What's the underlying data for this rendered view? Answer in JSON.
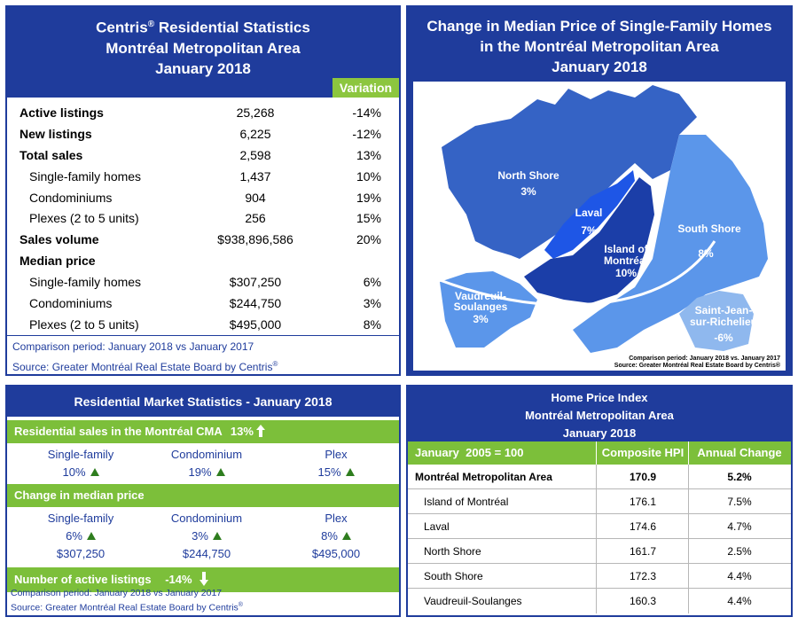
{
  "stats": {
    "title_line1": "Centris",
    "title_sup": "®",
    "title_line1_rest": " Residential Statistics",
    "title_line2": "Montréal Metropolitan Area",
    "title_line3": "January 2018",
    "variation_label": "Variation",
    "rows": [
      {
        "label": "Active listings",
        "value": "25,268",
        "variation": "-14%"
      },
      {
        "label": "New listings",
        "value": "6,225",
        "variation": "-12%"
      },
      {
        "label": "Total sales",
        "value": "2,598",
        "variation": "13%"
      },
      {
        "label": "Single-family homes",
        "value": "1,437",
        "variation": "10%"
      },
      {
        "label": "Condominiums",
        "value": "904",
        "variation": "19%"
      },
      {
        "label": "Plexes (2 to 5 units)",
        "value": "256",
        "variation": "15%"
      },
      {
        "label": "Sales volume",
        "value": "$938,896,586",
        "variation": "20%"
      },
      {
        "label": "Median price",
        "value": "",
        "variation": ""
      },
      {
        "label": "Single-family homes",
        "value": "$307,250",
        "variation": "6%"
      },
      {
        "label": "Condominiums",
        "value": "$244,750",
        "variation": "3%"
      },
      {
        "label": "Plexes (2 to 5 units)",
        "value": "$495,000",
        "variation": "8%"
      }
    ],
    "comparison": "Comparison period: January 2018 vs January 2017",
    "source": "Source: Greater Montréal Real Estate Board by Centris",
    "source_sup": "®"
  },
  "map": {
    "title_line1": "Change in Median Price of Single-Family Homes",
    "title_line2": "in the Montréal Metropolitan Area",
    "title_line3": "January 2018",
    "regions": {
      "north_shore": {
        "name": "North Shore",
        "pct": "3%"
      },
      "laval": {
        "name": "Laval",
        "pct": "7%"
      },
      "island_l1": "Island of",
      "island_l2": "Montréal",
      "island_pct": "10%",
      "south_shore": {
        "name": "South Shore",
        "pct": "8%"
      },
      "vaudreuil_l1": "Vaudreuil-",
      "vaudreuil_l2": "Soulanges",
      "vaudreuil_pct": "3%",
      "stjean_l1": "Saint-Jean-",
      "stjean_l2": "sur-Richelieu",
      "stjean_pct": "-6%"
    },
    "comparison": "Comparison period: January 2018 vs. January 2017",
    "source": "Source: Greater Montréal Real Estate Board by Centris®",
    "colors": {
      "north_shore": "#3563c5",
      "laval": "#1e56e6",
      "island": "#1b3ea8",
      "south_shore": "#5b96ea",
      "vaudreuil": "#5b96ea",
      "stjean": "#8fb8ee"
    }
  },
  "market": {
    "title": "Residential Market Statistics - January 2018",
    "sales_bar_label": "Residential sales in the Montréal CMA",
    "sales_bar_pct": "13%",
    "sales": [
      {
        "label": "Single-family",
        "pct": "10%"
      },
      {
        "label": "Condominium",
        "pct": "19%"
      },
      {
        "label": "Plex",
        "pct": "15%"
      }
    ],
    "median_bar_label": "Change in median price",
    "median": [
      {
        "label": "Single-family",
        "pct": "6%",
        "price": "$307,250"
      },
      {
        "label": "Condominium",
        "pct": "3%",
        "price": "$244,750"
      },
      {
        "label": "Plex",
        "pct": "8%",
        "price": "$495,000"
      }
    ],
    "active_bar_label": "Number of active listings",
    "active_bar_pct": "-14%",
    "comparison": "Comparison period: January 2018 vs January 2017",
    "source": "Source: Greater Montréal Real Estate Board by Centris",
    "source_sup": "®"
  },
  "hpi": {
    "title_line1": "Home Price Index",
    "title_line2": "Montréal Metropolitan Area",
    "title_line3": "January 2018",
    "col1": "January  2005 = 100",
    "col2": "Composite HPI",
    "col3": "Annual Change",
    "rows": [
      {
        "area": "Montréal Metropolitan Area",
        "hpi": "170.9",
        "change": "5.2%"
      },
      {
        "area": "Island of Montréal",
        "hpi": "176.1",
        "change": "7.5%"
      },
      {
        "area": "Laval",
        "hpi": "174.6",
        "change": "4.7%"
      },
      {
        "area": "North Shore",
        "hpi": "161.7",
        "change": "2.5%"
      },
      {
        "area": "South Shore",
        "hpi": "172.3",
        "change": "4.4%"
      },
      {
        "area": "Vaudreuil-Soulanges",
        "hpi": "160.3",
        "change": "4.4%"
      }
    ]
  }
}
